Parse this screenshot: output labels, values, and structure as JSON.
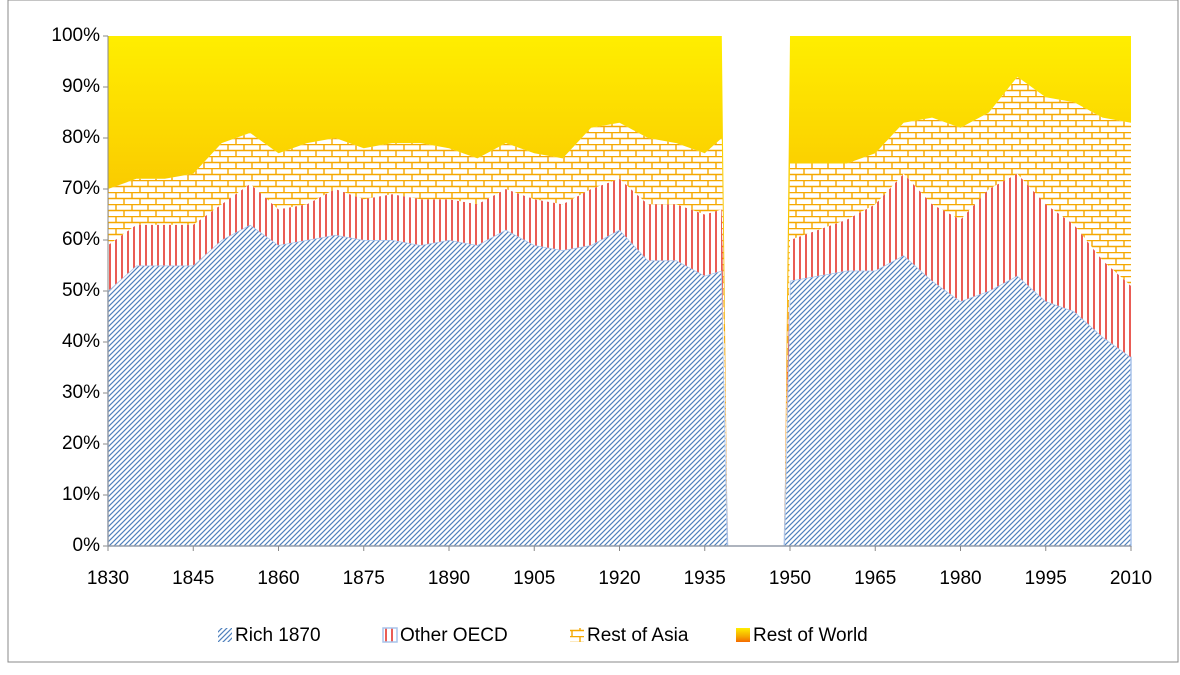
{
  "chart_data": {
    "type": "stacked_area",
    "x": [
      1830,
      1835,
      1840,
      1845,
      1850,
      1855,
      1860,
      1865,
      1870,
      1875,
      1880,
      1885,
      1890,
      1895,
      1900,
      1905,
      1910,
      1915,
      1920,
      1925,
      1930,
      1935,
      1938,
      1939,
      1949,
      1950,
      1955,
      1960,
      1965,
      1970,
      1975,
      1980,
      1985,
      1990,
      1995,
      2000,
      2005,
      2010
    ],
    "series": [
      {
        "name": "Rich 1870",
        "color": "#4f81bd",
        "values": [
          50,
          55,
          55,
          55,
          60,
          63,
          59,
          60,
          61,
          60,
          60,
          59,
          60,
          59,
          62,
          59,
          58,
          59,
          62,
          56,
          56,
          53,
          54,
          0,
          0,
          52,
          53,
          54,
          54,
          57,
          52,
          48,
          50,
          53,
          48,
          46,
          41,
          37
        ]
      },
      {
        "name": "Other OECD",
        "color": "#e3261c",
        "values": [
          9,
          8,
          8,
          8,
          7,
          8,
          7,
          7,
          9,
          8,
          9,
          9,
          8,
          8,
          8,
          9,
          9,
          11,
          10,
          11,
          11,
          12,
          12,
          0,
          0,
          8,
          9,
          10,
          13,
          16,
          15,
          16,
          20,
          20,
          19,
          17,
          15,
          14
        ]
      },
      {
        "name": "Rest of Asia",
        "color": "#f5a800",
        "values": [
          11,
          9,
          9,
          10,
          12,
          10,
          11,
          12,
          10,
          10,
          10,
          11,
          10,
          9,
          9,
          9,
          9,
          12,
          11,
          13,
          12,
          12,
          14,
          0,
          0,
          15,
          13,
          11,
          10,
          10,
          17,
          18,
          15,
          19,
          21,
          24,
          28,
          32
        ]
      },
      {
        "name": "Rest of World",
        "color": "#f56a00",
        "values": [
          30,
          28,
          28,
          27,
          21,
          19,
          23,
          21,
          20,
          22,
          21,
          21,
          22,
          24,
          21,
          23,
          24,
          18,
          17,
          20,
          21,
          23,
          20,
          0,
          0,
          25,
          25,
          25,
          23,
          17,
          16,
          18,
          15,
          8,
          12,
          13,
          16,
          17
        ]
      }
    ],
    "xlim": [
      1830,
      2010
    ],
    "xticks": [
      1830,
      1845,
      1860,
      1875,
      1890,
      1905,
      1920,
      1935,
      1950,
      1965,
      1980,
      1995,
      2010
    ],
    "ylim": [
      0,
      100
    ],
    "yticks": [
      {
        "value": 0,
        "label": "0%"
      },
      {
        "value": 10,
        "label": "10%"
      },
      {
        "value": 20,
        "label": "20%"
      },
      {
        "value": 30,
        "label": "30%"
      },
      {
        "value": 40,
        "label": "40%"
      },
      {
        "value": 50,
        "label": "50%"
      },
      {
        "value": 60,
        "label": "60%"
      },
      {
        "value": 70,
        "label": "70%"
      },
      {
        "value": 80,
        "label": "80%"
      },
      {
        "value": 90,
        "label": "90%"
      },
      {
        "value": 100,
        "label": "100%"
      }
    ],
    "legend": "bottom"
  }
}
